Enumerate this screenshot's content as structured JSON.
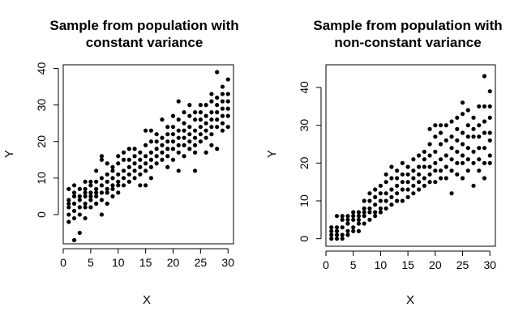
{
  "chart_data": [
    {
      "type": "scatter",
      "title_line1": "Sample from population with",
      "title_line2": "constant variance",
      "xlabel": "X",
      "ylabel": "Y",
      "xlim": [
        0,
        31
      ],
      "ylim": [
        -8,
        41
      ],
      "xticks": [
        0,
        5,
        10,
        15,
        20,
        25,
        30
      ],
      "xtick_labels": [
        "0",
        "5",
        "10",
        "15",
        "20",
        "25",
        "30"
      ],
      "yticks": [
        0,
        10,
        20,
        30,
        40
      ],
      "ytick_labels": [
        "0",
        "10",
        "20",
        "30",
        "40"
      ],
      "point_color": "#000000",
      "points": [
        [
          1,
          -2
        ],
        [
          1,
          0
        ],
        [
          1,
          2
        ],
        [
          1,
          3
        ],
        [
          1,
          4
        ],
        [
          1,
          7
        ],
        [
          2,
          -7
        ],
        [
          2,
          -1
        ],
        [
          2,
          1
        ],
        [
          2,
          3
        ],
        [
          2,
          5
        ],
        [
          2,
          6
        ],
        [
          2,
          8
        ],
        [
          3,
          -5
        ],
        [
          3,
          0
        ],
        [
          3,
          2
        ],
        [
          3,
          4
        ],
        [
          3,
          5
        ],
        [
          3,
          7
        ],
        [
          4,
          -1
        ],
        [
          4,
          2
        ],
        [
          4,
          3
        ],
        [
          4,
          5
        ],
        [
          4,
          6
        ],
        [
          4,
          7
        ],
        [
          4,
          9
        ],
        [
          5,
          2
        ],
        [
          5,
          4
        ],
        [
          5,
          5
        ],
        [
          5,
          6
        ],
        [
          5,
          8
        ],
        [
          5,
          9
        ],
        [
          6,
          3
        ],
        [
          6,
          5
        ],
        [
          6,
          6
        ],
        [
          6,
          7
        ],
        [
          6,
          9
        ],
        [
          6,
          12
        ],
        [
          7,
          0
        ],
        [
          7,
          4
        ],
        [
          7,
          6
        ],
        [
          7,
          8
        ],
        [
          7,
          10
        ],
        [
          7,
          15
        ],
        [
          7,
          16
        ],
        [
          8,
          3
        ],
        [
          8,
          6
        ],
        [
          8,
          7
        ],
        [
          8,
          9
        ],
        [
          8,
          11
        ],
        [
          8,
          14
        ],
        [
          9,
          5
        ],
        [
          9,
          7
        ],
        [
          9,
          8
        ],
        [
          9,
          10
        ],
        [
          9,
          12
        ],
        [
          9,
          13
        ],
        [
          10,
          6
        ],
        [
          10,
          8
        ],
        [
          10,
          9
        ],
        [
          10,
          11
        ],
        [
          10,
          14
        ],
        [
          10,
          16
        ],
        [
          11,
          8
        ],
        [
          11,
          10
        ],
        [
          11,
          12
        ],
        [
          11,
          15
        ],
        [
          11,
          17
        ],
        [
          12,
          9
        ],
        [
          12,
          11
        ],
        [
          12,
          13
        ],
        [
          12,
          15
        ],
        [
          12,
          18
        ],
        [
          13,
          10
        ],
        [
          13,
          12
        ],
        [
          13,
          14
        ],
        [
          13,
          16
        ],
        [
          13,
          18
        ],
        [
          14,
          8
        ],
        [
          14,
          11
        ],
        [
          14,
          13
        ],
        [
          14,
          15
        ],
        [
          14,
          17
        ],
        [
          15,
          8
        ],
        [
          15,
          12
        ],
        [
          15,
          14
        ],
        [
          15,
          16
        ],
        [
          15,
          19
        ],
        [
          15,
          23
        ],
        [
          16,
          10
        ],
        [
          16,
          13
        ],
        [
          16,
          15
        ],
        [
          16,
          17
        ],
        [
          16,
          20
        ],
        [
          16,
          23
        ],
        [
          17,
          14
        ],
        [
          17,
          16
        ],
        [
          17,
          18
        ],
        [
          17,
          20
        ],
        [
          17,
          22
        ],
        [
          18,
          15
        ],
        [
          18,
          17
        ],
        [
          18,
          19
        ],
        [
          18,
          21
        ],
        [
          18,
          26
        ],
        [
          19,
          13
        ],
        [
          19,
          16
        ],
        [
          19,
          18
        ],
        [
          19,
          20
        ],
        [
          19,
          22
        ],
        [
          19,
          24
        ],
        [
          20,
          15
        ],
        [
          20,
          18
        ],
        [
          20,
          20
        ],
        [
          20,
          22
        ],
        [
          20,
          24
        ],
        [
          20,
          27
        ],
        [
          21,
          12
        ],
        [
          21,
          17
        ],
        [
          21,
          19
        ],
        [
          21,
          21
        ],
        [
          21,
          23
        ],
        [
          21,
          26
        ],
        [
          21,
          31
        ],
        [
          22,
          16
        ],
        [
          22,
          19
        ],
        [
          22,
          21
        ],
        [
          22,
          23
        ],
        [
          22,
          25
        ],
        [
          22,
          28
        ],
        [
          23,
          18
        ],
        [
          23,
          20
        ],
        [
          23,
          22
        ],
        [
          23,
          24
        ],
        [
          23,
          27
        ],
        [
          23,
          30
        ],
        [
          24,
          12
        ],
        [
          24,
          17
        ],
        [
          24,
          19
        ],
        [
          24,
          21
        ],
        [
          24,
          23
        ],
        [
          24,
          26
        ],
        [
          24,
          28
        ],
        [
          25,
          20
        ],
        [
          25,
          22
        ],
        [
          25,
          24
        ],
        [
          25,
          26
        ],
        [
          25,
          28
        ],
        [
          25,
          30
        ],
        [
          26,
          17
        ],
        [
          26,
          21
        ],
        [
          26,
          23
        ],
        [
          26,
          25
        ],
        [
          26,
          27
        ],
        [
          26,
          30
        ],
        [
          27,
          19
        ],
        [
          27,
          22
        ],
        [
          27,
          24
        ],
        [
          27,
          26
        ],
        [
          27,
          28
        ],
        [
          27,
          31
        ],
        [
          27,
          33
        ],
        [
          28,
          18
        ],
        [
          28,
          24
        ],
        [
          28,
          26
        ],
        [
          28,
          28
        ],
        [
          28,
          30
        ],
        [
          28,
          32
        ],
        [
          28,
          39
        ],
        [
          29,
          23
        ],
        [
          29,
          25
        ],
        [
          29,
          27
        ],
        [
          29,
          29
        ],
        [
          29,
          31
        ],
        [
          29,
          33
        ],
        [
          29,
          35
        ],
        [
          30,
          24
        ],
        [
          30,
          27
        ],
        [
          30,
          29
        ],
        [
          30,
          31
        ],
        [
          30,
          33
        ],
        [
          30,
          37
        ]
      ]
    },
    {
      "type": "scatter",
      "title_line1": "Sample from population with",
      "title_line2": "non-constant variance",
      "xlabel": "X",
      "ylabel": "Y",
      "xlim": [
        0,
        31
      ],
      "ylim": [
        -2,
        46
      ],
      "xticks": [
        0,
        5,
        10,
        15,
        20,
        25,
        30
      ],
      "xtick_labels": [
        "0",
        "5",
        "10",
        "15",
        "20",
        "25",
        "30"
      ],
      "yticks": [
        0,
        10,
        20,
        30,
        40
      ],
      "ytick_labels": [
        "0",
        "10",
        "20",
        "30",
        "40"
      ],
      "point_color": "#000000",
      "points": [
        [
          1,
          0
        ],
        [
          1,
          1
        ],
        [
          1,
          2
        ],
        [
          1,
          3
        ],
        [
          2,
          0
        ],
        [
          2,
          1
        ],
        [
          2,
          2
        ],
        [
          2,
          3
        ],
        [
          2,
          6
        ],
        [
          3,
          0
        ],
        [
          3,
          1
        ],
        [
          3,
          3
        ],
        [
          3,
          5
        ],
        [
          3,
          6
        ],
        [
          4,
          1
        ],
        [
          4,
          2
        ],
        [
          4,
          4
        ],
        [
          4,
          5
        ],
        [
          4,
          6
        ],
        [
          5,
          2
        ],
        [
          5,
          3
        ],
        [
          5,
          5
        ],
        [
          5,
          6
        ],
        [
          5,
          7
        ],
        [
          6,
          2
        ],
        [
          6,
          4
        ],
        [
          6,
          5
        ],
        [
          6,
          6
        ],
        [
          6,
          7
        ],
        [
          7,
          4
        ],
        [
          7,
          6
        ],
        [
          7,
          7
        ],
        [
          7,
          8
        ],
        [
          7,
          10
        ],
        [
          8,
          5
        ],
        [
          8,
          7
        ],
        [
          8,
          8
        ],
        [
          8,
          10
        ],
        [
          8,
          12
        ],
        [
          9,
          6
        ],
        [
          9,
          7
        ],
        [
          9,
          9
        ],
        [
          9,
          11
        ],
        [
          9,
          13
        ],
        [
          10,
          7
        ],
        [
          10,
          8
        ],
        [
          10,
          10
        ],
        [
          10,
          12
        ],
        [
          10,
          14
        ],
        [
          11,
          8
        ],
        [
          11,
          10
        ],
        [
          11,
          12
        ],
        [
          11,
          15
        ],
        [
          11,
          17
        ],
        [
          12,
          9
        ],
        [
          12,
          11
        ],
        [
          12,
          13
        ],
        [
          12,
          16
        ],
        [
          12,
          19
        ],
        [
          13,
          10
        ],
        [
          13,
          12
        ],
        [
          13,
          14
        ],
        [
          13,
          16
        ],
        [
          13,
          18
        ],
        [
          14,
          10
        ],
        [
          14,
          13
        ],
        [
          14,
          15
        ],
        [
          14,
          17
        ],
        [
          14,
          20
        ],
        [
          15,
          11
        ],
        [
          15,
          13
        ],
        [
          15,
          15
        ],
        [
          15,
          17
        ],
        [
          15,
          19
        ],
        [
          16,
          12
        ],
        [
          16,
          14
        ],
        [
          16,
          16
        ],
        [
          16,
          18
        ],
        [
          16,
          21
        ],
        [
          17,
          13
        ],
        [
          17,
          15
        ],
        [
          17,
          17
        ],
        [
          17,
          19
        ],
        [
          17,
          22
        ],
        [
          18,
          14
        ],
        [
          18,
          16
        ],
        [
          18,
          19
        ],
        [
          18,
          21
        ],
        [
          18,
          23
        ],
        [
          19,
          15
        ],
        [
          19,
          17
        ],
        [
          19,
          19
        ],
        [
          19,
          22
        ],
        [
          19,
          25
        ],
        [
          19,
          29
        ],
        [
          20,
          15
        ],
        [
          20,
          18
        ],
        [
          20,
          20
        ],
        [
          20,
          23
        ],
        [
          20,
          27
        ],
        [
          20,
          30
        ],
        [
          21,
          16
        ],
        [
          21,
          18
        ],
        [
          21,
          21
        ],
        [
          21,
          25
        ],
        [
          21,
          28
        ],
        [
          21,
          30
        ],
        [
          22,
          16
        ],
        [
          22,
          19
        ],
        [
          22,
          22
        ],
        [
          22,
          26
        ],
        [
          22,
          30
        ],
        [
          23,
          12
        ],
        [
          23,
          18
        ],
        [
          23,
          21
        ],
        [
          23,
          24
        ],
        [
          23,
          27
        ],
        [
          23,
          31
        ],
        [
          24,
          17
        ],
        [
          24,
          20
        ],
        [
          24,
          23
        ],
        [
          24,
          26
        ],
        [
          24,
          29
        ],
        [
          24,
          32
        ],
        [
          25,
          16
        ],
        [
          25,
          20
        ],
        [
          25,
          22
        ],
        [
          25,
          25
        ],
        [
          25,
          28
        ],
        [
          25,
          33
        ],
        [
          25,
          36
        ],
        [
          26,
          18
        ],
        [
          26,
          21
        ],
        [
          26,
          24
        ],
        [
          26,
          27
        ],
        [
          26,
          30
        ],
        [
          26,
          34
        ],
        [
          27,
          14
        ],
        [
          27,
          20
        ],
        [
          27,
          23
        ],
        [
          27,
          27
        ],
        [
          27,
          29
        ],
        [
          27,
          32
        ],
        [
          28,
          18
        ],
        [
          28,
          21
        ],
        [
          28,
          24
        ],
        [
          28,
          27
        ],
        [
          28,
          30
        ],
        [
          28,
          35
        ],
        [
          29,
          16
        ],
        [
          29,
          20
        ],
        [
          29,
          24
        ],
        [
          29,
          28
        ],
        [
          29,
          31
        ],
        [
          29,
          35
        ],
        [
          29,
          43
        ],
        [
          30,
          20
        ],
        [
          30,
          22
        ],
        [
          30,
          26
        ],
        [
          30,
          28
        ],
        [
          30,
          32
        ],
        [
          30,
          35
        ],
        [
          30,
          39
        ]
      ]
    }
  ]
}
